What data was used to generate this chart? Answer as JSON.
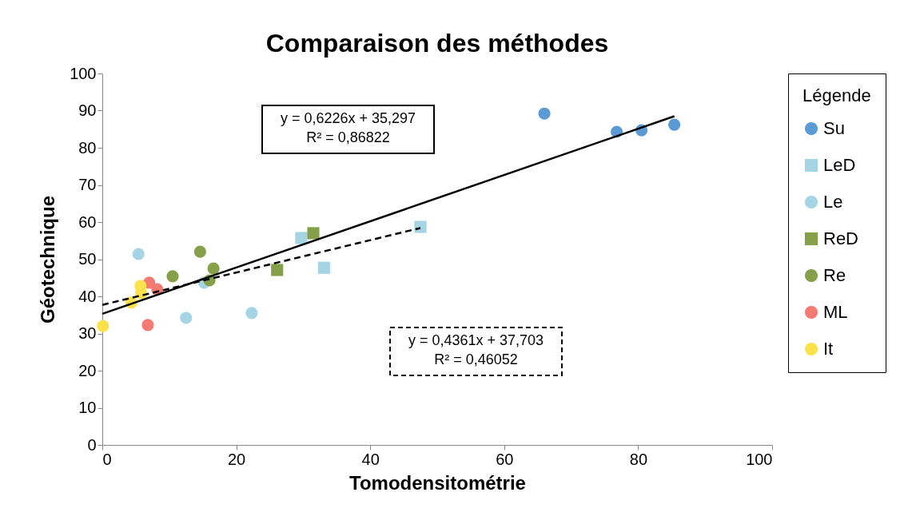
{
  "chart_data": {
    "type": "scatter",
    "title": "Comparaison des méthodes",
    "xlabel": "Tomodensitométrie",
    "ylabel": "Géotechnique",
    "legend_title": "Légende",
    "legend": "right",
    "grid": false,
    "xlim": [
      0,
      100
    ],
    "xticks": [
      0,
      20,
      40,
      60,
      80,
      100
    ],
    "ylim": [
      0,
      100
    ],
    "yticks": [
      0,
      10,
      20,
      30,
      40,
      50,
      60,
      70,
      80,
      90,
      100
    ],
    "series": [
      {
        "name": "Su",
        "color": "#5b9bd5",
        "marker": "circle",
        "x": [
          66.0,
          76.8,
          80.5,
          85.4
        ],
        "values": [
          89.2,
          84.3,
          84.7,
          86.2
        ]
      },
      {
        "name": "LeD",
        "color": "#a5d5e4",
        "marker": "square",
        "x": [
          29.7,
          33.1,
          47.5
        ],
        "values": [
          55.7,
          47.7,
          58.7
        ]
      },
      {
        "name": "Le",
        "color": "#a5d5e4",
        "marker": "circle",
        "x": [
          5.4,
          15.2,
          12.5,
          22.3
        ],
        "values": [
          51.4,
          43.7,
          34.2,
          35.5
        ]
      },
      {
        "name": "ReD",
        "color": "#86a04a",
        "marker": "square",
        "x": [
          26.1,
          31.5
        ],
        "values": [
          47.1,
          57.0
        ]
      },
      {
        "name": "Re",
        "color": "#86a04a",
        "marker": "circle",
        "x": [
          14.6,
          16.6,
          10.5,
          16.0
        ],
        "values": [
          52.0,
          47.5,
          45.4,
          44.3
        ]
      },
      {
        "name": "ML",
        "color": "#f47a72",
        "marker": "circle",
        "x": [
          7.0,
          8.2,
          6.8
        ],
        "values": [
          43.7,
          41.9,
          32.3
        ]
      },
      {
        "name": "It",
        "color": "#fce14a",
        "marker": "circle",
        "x": [
          0.1,
          4.3,
          5.7,
          5.8
        ],
        "values": [
          32.0,
          38.3,
          42.8,
          40.9
        ]
      },
      {
        "type": "line",
        "color": "#000000",
        "line_style": "solid",
        "x": [
          0,
          85.4
        ],
        "values": [
          35.3,
          88.5
        ]
      },
      {
        "type": "line",
        "color": "#000000",
        "line_style": "dashed",
        "x": [
          0,
          47.5
        ],
        "values": [
          37.7,
          58.4
        ]
      }
    ],
    "annotations": [
      {
        "text": "y = 0,6226x + 35,297\nR² = 0,86822"
      },
      {
        "text": "y = 0,4361x + 37,703\nR² = 0,46052"
      }
    ]
  }
}
